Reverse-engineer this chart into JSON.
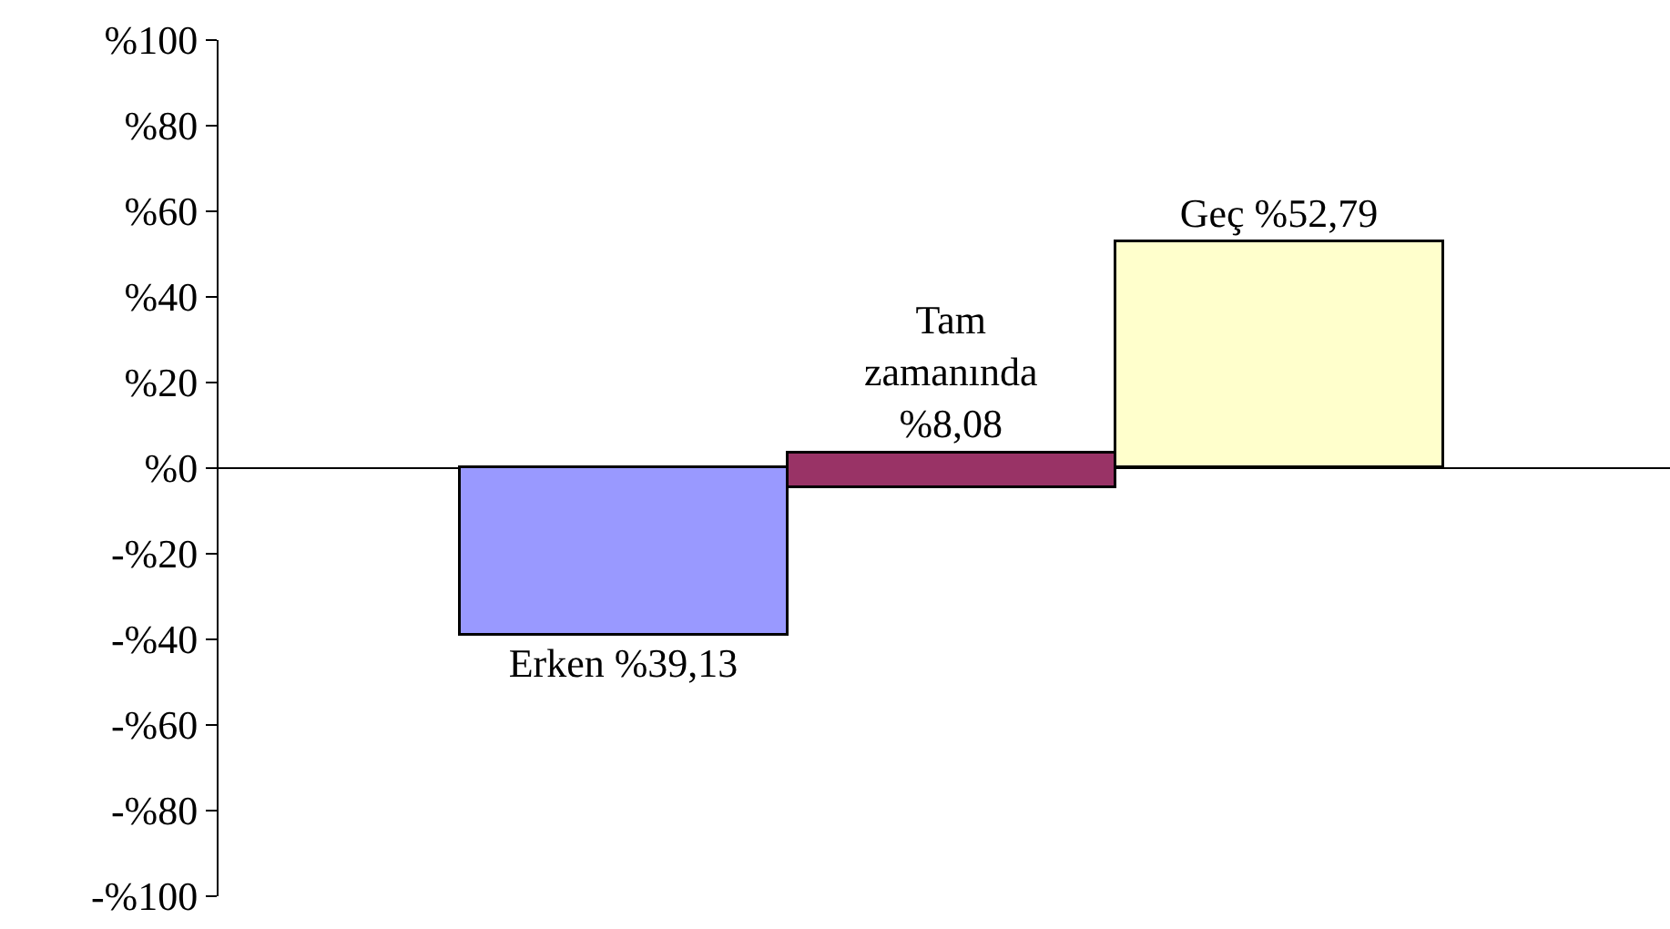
{
  "chart_data": {
    "type": "bar",
    "categories": [
      null,
      null,
      null
    ],
    "values": [
      -39.13,
      8.08,
      52.79
    ],
    "base": [
      0,
      -4.5,
      0
    ],
    "colors": [
      "#9999ff",
      "#993366",
      "#ffffcc"
    ],
    "value_labels": [
      "Erken %39,13",
      "Tam\nzamanında\n%8,08",
      "Geç %52,79"
    ],
    "ylim": [
      -100,
      100
    ],
    "yticks": [
      {
        "value": -100,
        "label": "-%100"
      },
      {
        "value": -80,
        "label": "-%80"
      },
      {
        "value": -60,
        "label": "-%60"
      },
      {
        "value": -40,
        "label": "-%40"
      },
      {
        "value": -20,
        "label": "-%20"
      },
      {
        "value": 0,
        "label": "%0"
      },
      {
        "value": 20,
        "label": "%20"
      },
      {
        "value": 40,
        "label": "%40"
      },
      {
        "value": 60,
        "label": "%60"
      },
      {
        "value": 80,
        "label": "%80"
      },
      {
        "value": 100,
        "label": "%100"
      }
    ],
    "ref_lines": [
      {
        "axis": "y",
        "value": 0,
        "color": "#000000"
      }
    ],
    "legend": false
  }
}
